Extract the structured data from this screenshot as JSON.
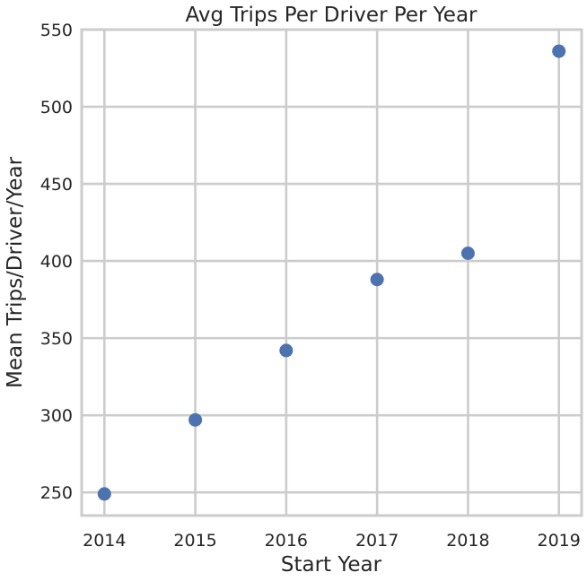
{
  "chart_data": {
    "type": "scatter",
    "title": "Avg Trips Per Driver Per Year",
    "xlabel": "Start Year",
    "ylabel": "Mean Trips/Driver/Year",
    "xlim": [
      2013.75,
      2019.25
    ],
    "ylim": [
      235,
      550
    ],
    "xticks": [
      2014,
      2015,
      2016,
      2017,
      2018,
      2019
    ],
    "yticks": [
      250,
      300,
      350,
      400,
      450,
      500,
      550
    ],
    "grid": true,
    "point_color": "#4c72b0",
    "points": [
      {
        "x": 2014,
        "y": 249
      },
      {
        "x": 2015,
        "y": 297
      },
      {
        "x": 2016,
        "y": 342
      },
      {
        "x": 2017,
        "y": 388
      },
      {
        "x": 2018,
        "y": 405
      },
      {
        "x": 2019,
        "y": 536
      }
    ]
  }
}
